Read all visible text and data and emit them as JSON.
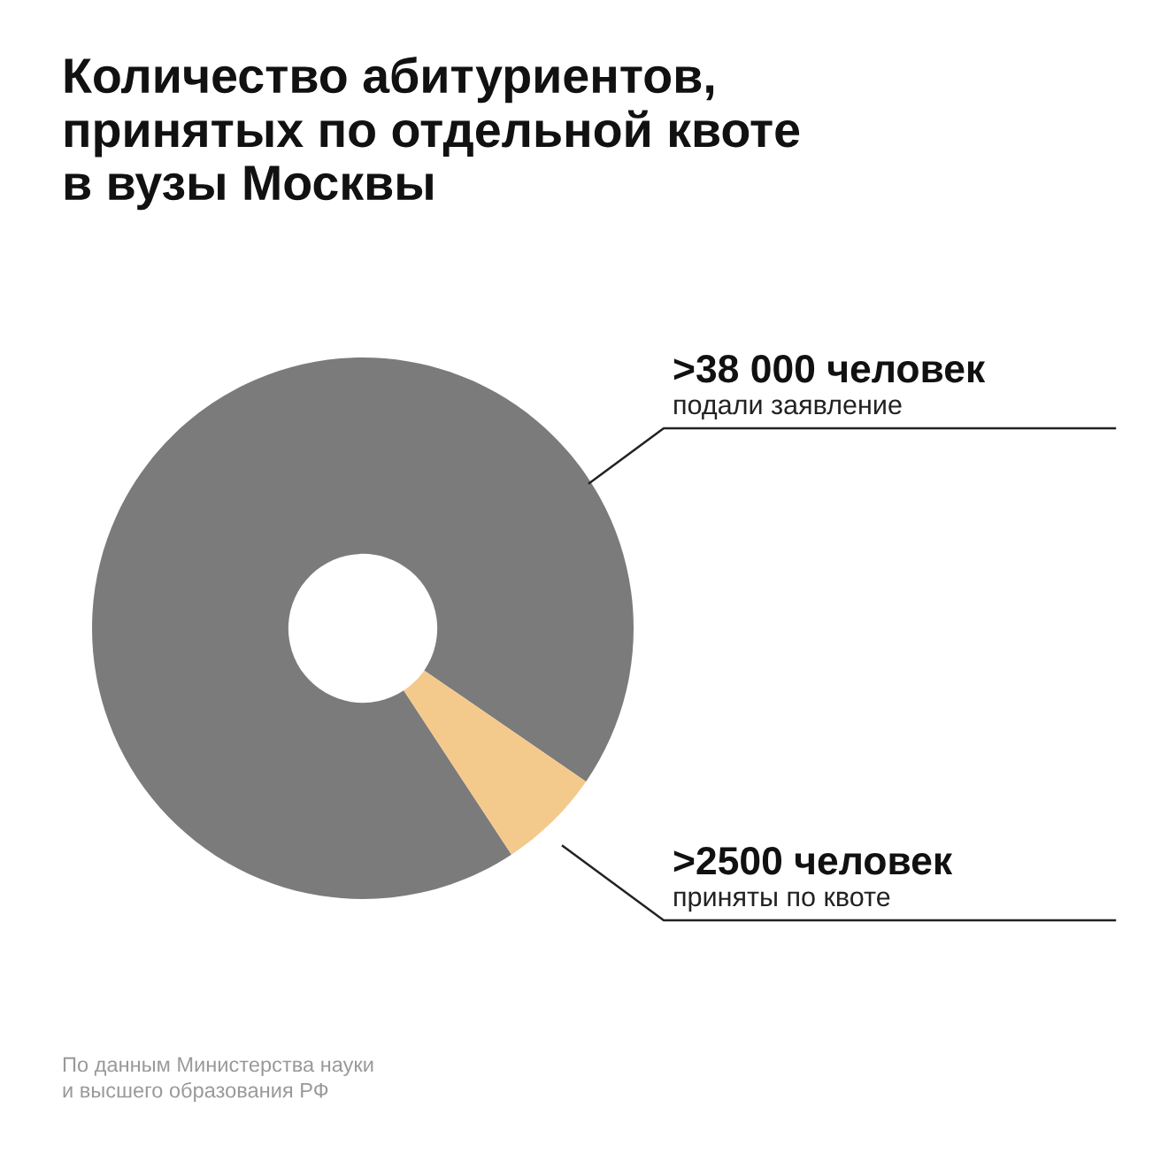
{
  "chart_data": {
    "type": "donut",
    "title": "Количество абитуриентов,\nпринятых по отдельной квоте\nв вузы Москвы",
    "categories": [
      "подали заявление",
      "приняты по квоте"
    ],
    "values": [
      38000,
      2500
    ],
    "value_labels": [
      ">38 000 человек",
      ">2500 человек"
    ],
    "colors": [
      "#7b7b7b",
      "#f4c98c"
    ],
    "annotations": [
      "По данным Министерства науки\nи высшего образования РФ"
    ]
  }
}
